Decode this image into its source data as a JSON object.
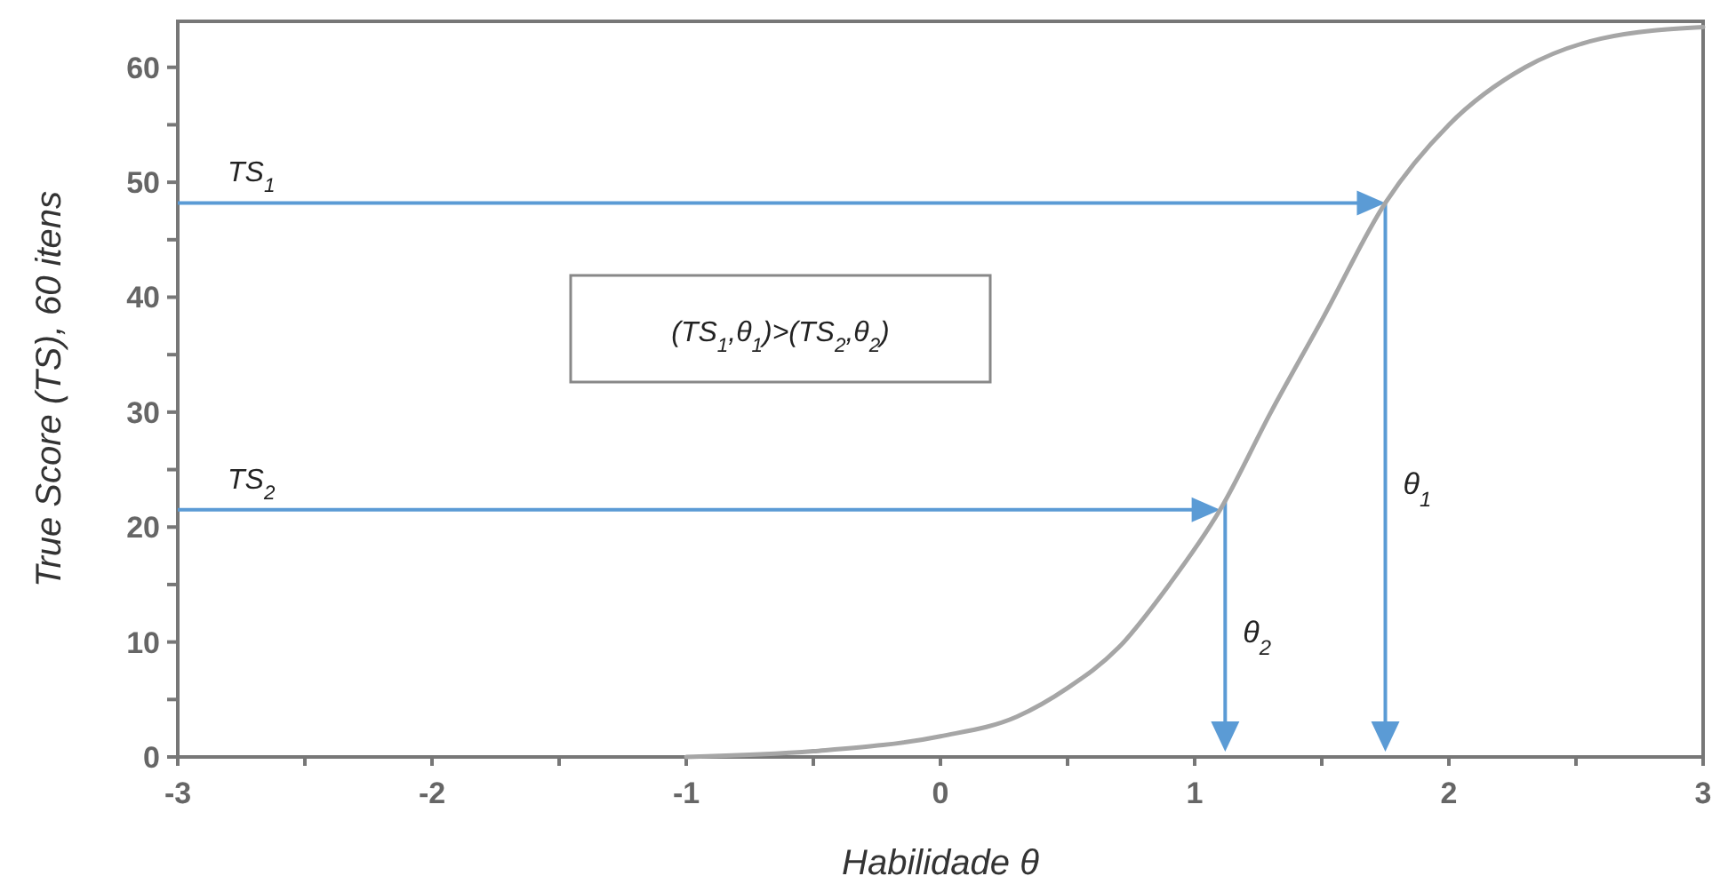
{
  "chart_data": {
    "type": "line",
    "xlabel": "Habilidade θ",
    "ylabel": "True Score (TS),  60 itens",
    "x": [
      -1,
      -0.5,
      0,
      0.3,
      0.5,
      0.7,
      0.9,
      1.1,
      1.3,
      1.5,
      1.75,
      2,
      2.3,
      2.6,
      3
    ],
    "series": [
      {
        "color": "#a6a6a6",
        "values": [
          0,
          0.5,
          1.8,
          3.5,
          6,
          9.5,
          15,
          21.5,
          30,
          38,
          48.2,
          55,
          60,
          62.5,
          63.5
        ]
      }
    ],
    "xlim": [
      -3,
      3
    ],
    "ylim": [
      0,
      64
    ],
    "xticks": [
      -3,
      {
        "value": -2.5,
        "label": null
      },
      -2,
      {
        "value": -1.5,
        "label": null
      },
      -1,
      {
        "value": -0.5,
        "label": null
      },
      0,
      {
        "value": 0.5,
        "label": null
      },
      1,
      {
        "value": 1.5,
        "label": null
      },
      2,
      {
        "value": 2.5,
        "label": null
      },
      3
    ],
    "yticks": [
      0,
      {
        "value": 5,
        "label": null
      },
      10,
      {
        "value": 15,
        "label": null
      },
      20,
      {
        "value": 25,
        "label": null
      },
      30,
      {
        "value": 35,
        "label": null
      },
      40,
      {
        "value": 45,
        "label": null
      },
      50,
      {
        "value": 55,
        "label": null
      },
      60
    ],
    "grid": false,
    "marker": "none",
    "line_style": "solid",
    "annotations": [
      "(TS$_{1}$,θ$_{1}$)>(TS$_{2}$,θ$_{2}$)"
    ],
    "ref_lines": [
      {
        "axis": "y",
        "value": 48.2,
        "label": "TS$_{1}$",
        "color": "#5b9bd5"
      },
      {
        "axis": "x",
        "value": 1.75,
        "label": "θ$_{1}$",
        "color": "#5b9bd5"
      },
      {
        "axis": "y",
        "value": 21.5,
        "label": "TS$_{2}$",
        "color": "#5b9bd5"
      },
      {
        "axis": "x",
        "value": 1.12,
        "label": "θ$_{2}$",
        "color": "#5b9bd5"
      }
    ]
  }
}
